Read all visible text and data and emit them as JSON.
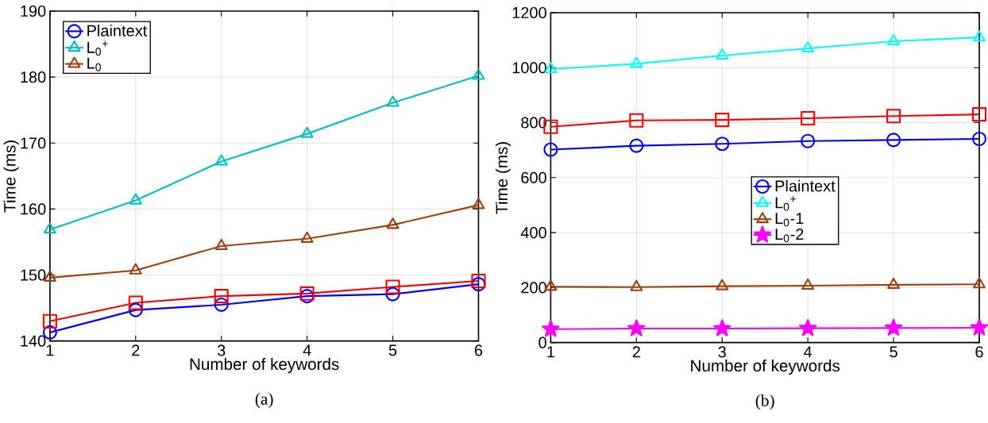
{
  "chart_data": [
    {
      "type": "line",
      "xlabel": "Number of keywords",
      "ylabel": "Time (ms)",
      "x": [
        1,
        2,
        3,
        4,
        5,
        6
      ],
      "xlim": [
        1,
        6
      ],
      "xticks": [
        1,
        2,
        3,
        4,
        5,
        6
      ],
      "ylim": [
        140,
        190
      ],
      "yticks": [
        140,
        150,
        160,
        170,
        180,
        190
      ],
      "grid": true,
      "legend": "top left",
      "annotations": [
        "(a)"
      ],
      "series": [
        {
          "name": "Plaintext",
          "color": "#0000ff",
          "marker": "circle",
          "values": [
            141.3,
            144.7,
            145.5,
            146.8,
            147.1,
            148.6
          ]
        },
        {
          "color": "#ff0000",
          "marker": "square",
          "values": [
            143.0,
            145.8,
            146.8,
            147.2,
            148.2,
            149.1
          ]
        },
        {
          "name": "L$_{0}$$^{+}$",
          "color": "#00bfbf",
          "marker": "triangle",
          "values": [
            156.9,
            161.3,
            167.2,
            171.4,
            176.1,
            180.2
          ]
        },
        {
          "name": "L$_{0}$",
          "color": "#a0410d",
          "marker": "triangle",
          "values": [
            149.6,
            150.7,
            154.4,
            155.5,
            157.6,
            160.6
          ]
        }
      ]
    },
    {
      "type": "line",
      "xlabel": "Number of keywords",
      "ylabel": "Time (ms)",
      "x": [
        1,
        2,
        3,
        4,
        5,
        6
      ],
      "xlim": [
        1,
        6
      ],
      "xticks": [
        1,
        2,
        3,
        4,
        5,
        6
      ],
      "ylim": [
        0,
        1200
      ],
      "yticks": [
        0,
        200,
        400,
        600,
        800,
        1000,
        1200
      ],
      "grid": true,
      "legend": "center",
      "annotations": [
        "(b)"
      ],
      "series": [
        {
          "name": "Plaintext",
          "color": "#0000ff",
          "marker": "circle",
          "values": [
            702,
            716,
            723,
            733,
            737,
            741
          ]
        },
        {
          "color": "#ff0000",
          "marker": "square",
          "values": [
            785,
            808,
            810,
            816,
            824,
            830
          ]
        },
        {
          "name": "L$_{0}$$^{+}$",
          "color": "#00ffff",
          "marker": "triangle",
          "values": [
            995,
            1014,
            1044,
            1070,
            1096,
            1110
          ]
        },
        {
          "name": "L$_{0}$-1",
          "color": "#a0410d",
          "marker": "triangle",
          "values": [
            203,
            202,
            205,
            207,
            210,
            212
          ]
        },
        {
          "name": "L$_{0}$-2",
          "color": "#ff00ff",
          "marker": "star",
          "values": [
            49,
            51,
            51,
            52,
            53,
            54
          ]
        }
      ]
    }
  ]
}
